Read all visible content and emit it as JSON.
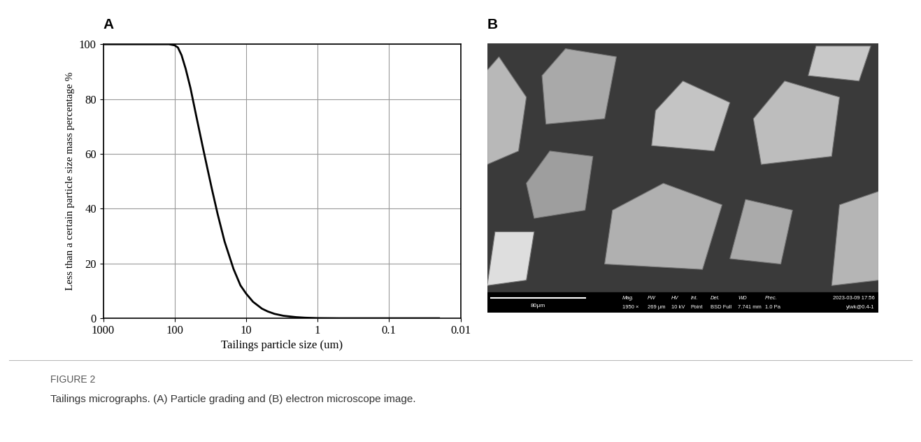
{
  "chart_data": {
    "type": "line",
    "x": [
      1000,
      200,
      120,
      100,
      90,
      80,
      70,
      60,
      50,
      40,
      35,
      30,
      25,
      20,
      15,
      12,
      10,
      8,
      6,
      5,
      4,
      3,
      2,
      1.5,
      1,
      0.5,
      0.1,
      0.02
    ],
    "values": [
      100,
      100,
      100,
      99.6,
      98.8,
      96,
      91,
      84,
      74,
      62,
      55,
      47,
      38,
      28,
      18,
      12,
      9,
      6,
      3.5,
      2.5,
      1.6,
      0.9,
      0.4,
      0.2,
      0.05,
      0,
      0,
      0
    ],
    "color": "#000000",
    "x_label": "Tailings particle size (um)",
    "y_label": "Less than a certain particle size mass percentage %",
    "log": "x",
    "xlim": [
      1000,
      0.01
    ],
    "xticks": [
      1000,
      100,
      10,
      1,
      0.1,
      0.01
    ],
    "ylim": [
      0,
      100
    ],
    "yticks": [
      0,
      20,
      40,
      60,
      80,
      100
    ],
    "grid": true
  },
  "panel_labels": [
    "A",
    "B"
  ],
  "sem_image": {
    "scale_bar": "80μm",
    "fields": [
      {
        "header": "Mag.",
        "value": "1950 ×"
      },
      {
        "header": "FW",
        "value": "269 μm"
      },
      {
        "header": "HV",
        "value": "10 kV"
      },
      {
        "header": "Int.",
        "value": "Point"
      },
      {
        "header": "Det.",
        "value": "BSD Full"
      },
      {
        "header": "WD",
        "value": "7.741 mm"
      },
      {
        "header": "Prec.",
        "value": "1.0 Pa"
      }
    ],
    "timestamp": "2023-03-09 17:56",
    "sample": "ytwk@0.4-1"
  },
  "caption": {
    "label": "FIGURE 2",
    "text": "Tailings micrographs. (A) Particle grading and (B) electron microscope image."
  }
}
